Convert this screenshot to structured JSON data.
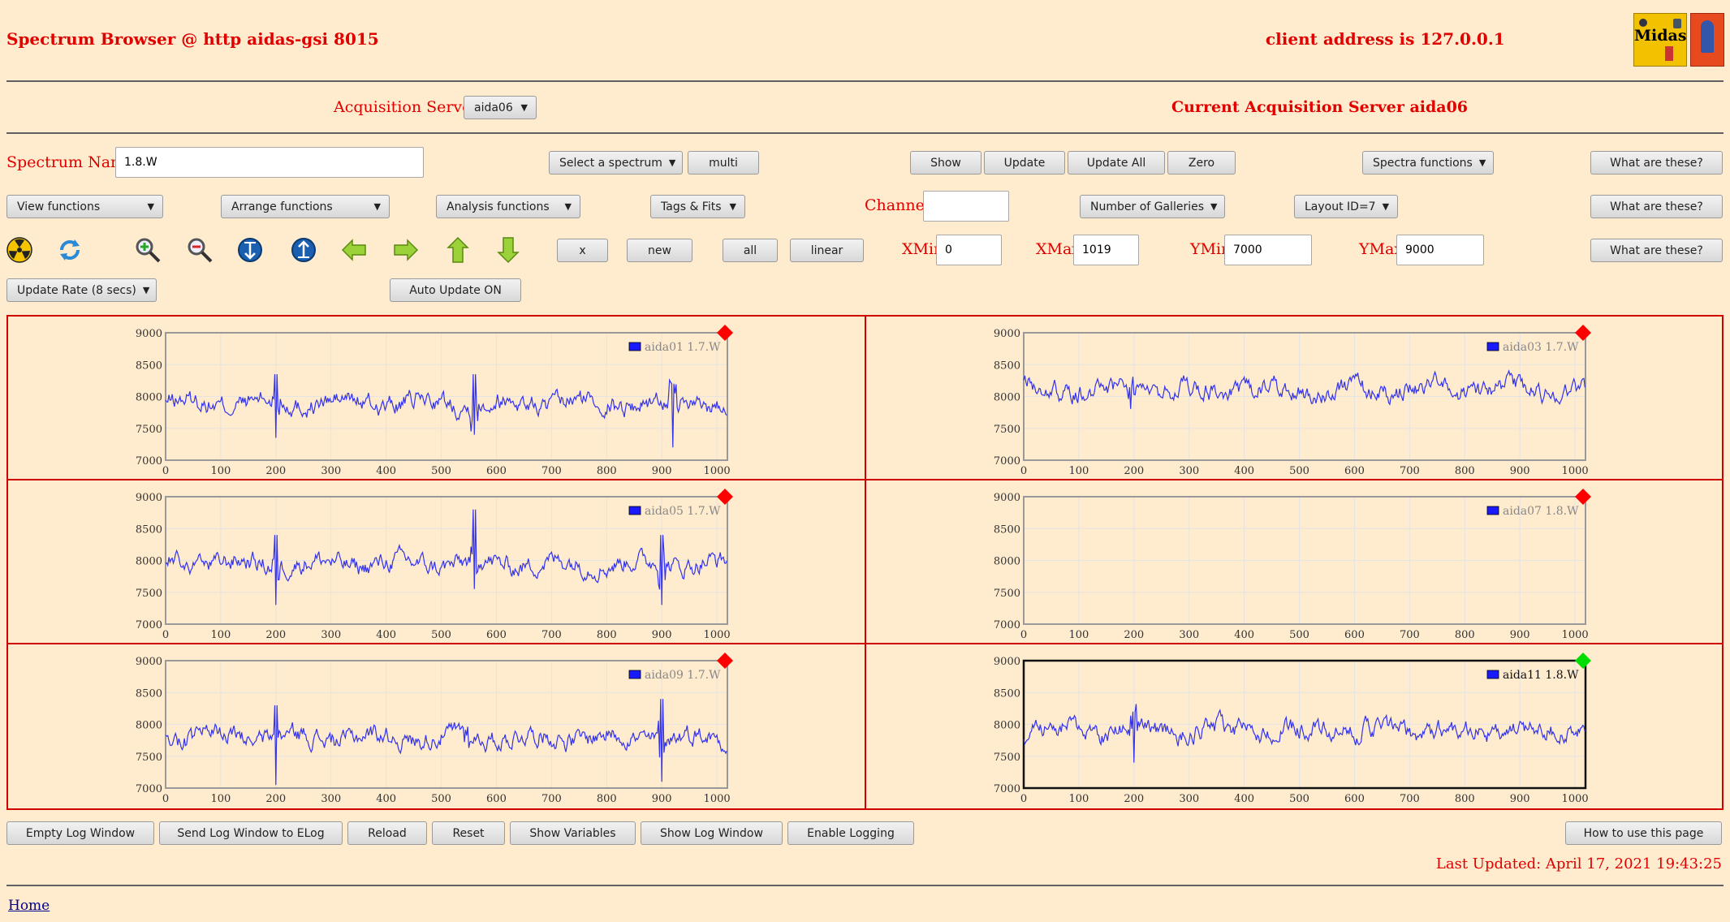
{
  "header": {
    "title": "Spectrum Browser @ http aidas-gsi 8015",
    "client_address": "client address is 127.0.0.1",
    "logo_text": "Midas"
  },
  "acq": {
    "label": "Acquisition Servers",
    "selected": "aida06",
    "current": "Current Acquisition Server aida06"
  },
  "row1": {
    "spectrum_name_label": "Spectrum Name:",
    "spectrum_name_value": "1.8.W",
    "select_spectrum": "Select a spectrum",
    "multi": "multi",
    "show": "Show",
    "update": "Update",
    "update_all": "Update All",
    "zero": "Zero",
    "spectra_functions": "Spectra functions",
    "what": "What are these?"
  },
  "row2": {
    "view_functions": "View functions",
    "arrange_functions": "Arrange functions",
    "analysis_functions": "Analysis functions",
    "tags_fits": "Tags & Fits",
    "channel_label": "Channel:",
    "channel_value": "",
    "galleries": "Number of Galleries",
    "layout": "Layout ID=7",
    "what": "What are these?"
  },
  "row3": {
    "x": "x",
    "new": "new",
    "all": "all",
    "linear": "linear",
    "xmin_label": "XMin",
    "xmin": "0",
    "xmax_label": "XMax",
    "xmax": "1019",
    "ymin_label": "YMin",
    "ymin": "7000",
    "ymax_label": "YMax",
    "ymax": "9000",
    "what": "What are these?",
    "icons": [
      "radiation-icon",
      "refresh-icon",
      "zoom-in-icon",
      "zoom-out-icon",
      "expand-y-icon",
      "compress-y-icon",
      "arrow-left-icon",
      "arrow-right-icon",
      "arrow-up-icon",
      "arrow-down-icon"
    ]
  },
  "row4": {
    "update_rate": "Update Rate (8 secs)",
    "auto_update": "Auto Update ON"
  },
  "chart_data": [
    {
      "type": "line",
      "series": [
        {
          "name": "aida01 1.7.W",
          "values": "noisy ~7900, spikes at 200, 560, 920"
        }
      ],
      "xlim": [
        0,
        1019
      ],
      "ylim": [
        7000,
        9000
      ],
      "xticks": [
        0,
        100,
        200,
        300,
        400,
        500,
        600,
        700,
        800,
        900,
        1000
      ],
      "yticks": [
        7000,
        7500,
        8000,
        8500,
        9000
      ],
      "status_color": "#ff0000"
    },
    {
      "type": "line",
      "series": [
        {
          "name": "aida03 1.7.W",
          "values": "noisy ~8100, spike at 195 (8650 / 7450)"
        }
      ],
      "xlim": [
        0,
        1019
      ],
      "ylim": [
        7000,
        9000
      ],
      "xticks": [
        0,
        100,
        200,
        300,
        400,
        500,
        600,
        700,
        800,
        900,
        1000
      ],
      "yticks": [
        7000,
        7500,
        8000,
        8500,
        9000
      ],
      "status_color": "#ff0000"
    },
    {
      "type": "line",
      "series": [
        {
          "name": "aida05 1.7.W",
          "values": "noisy ~7950, spike at 560 (8800)"
        }
      ],
      "xlim": [
        0,
        1019
      ],
      "ylim": [
        7000,
        9000
      ],
      "xticks": [
        0,
        100,
        200,
        300,
        400,
        500,
        600,
        700,
        800,
        900,
        1000
      ],
      "yticks": [
        7000,
        7500,
        8000,
        8500,
        9000
      ],
      "status_color": "#ff0000"
    },
    {
      "type": "line",
      "series": [
        {
          "name": "aida07 1.8.W",
          "values": []
        }
      ],
      "xlim": [
        0,
        1019
      ],
      "ylim": [
        7000,
        9000
      ],
      "xticks": [
        0,
        100,
        200,
        300,
        400,
        500,
        600,
        700,
        800,
        900,
        1000
      ],
      "yticks": [
        7000,
        7500,
        8000,
        8500,
        9000
      ],
      "status_color": "#ff0000"
    },
    {
      "type": "line",
      "series": [
        {
          "name": "aida09 1.7.W",
          "values": "noisy ~7800, spikes at 200, 545, 900"
        }
      ],
      "xlim": [
        0,
        1019
      ],
      "ylim": [
        7000,
        9000
      ],
      "xticks": [
        0,
        100,
        200,
        300,
        400,
        500,
        600,
        700,
        800,
        900,
        1000
      ],
      "yticks": [
        7000,
        7500,
        8000,
        8500,
        9000
      ],
      "status_color": "#ff0000"
    },
    {
      "type": "line",
      "series": [
        {
          "name": "aida11 1.8.W",
          "values": "noisy ~7900"
        }
      ],
      "xlim": [
        0,
        1019
      ],
      "ylim": [
        7000,
        9000
      ],
      "xticks": [
        0,
        100,
        200,
        300,
        400,
        500,
        600,
        700,
        800,
        900,
        1000
      ],
      "yticks": [
        7000,
        7500,
        8000,
        8500,
        9000
      ],
      "status_color": "#00dd00",
      "selected": true
    }
  ],
  "footer": {
    "empty_log": "Empty Log Window",
    "send_log": "Send Log Window to ELog",
    "reload": "Reload",
    "reset": "Reset",
    "show_variables": "Show Variables",
    "show_log": "Show Log Window",
    "enable_logging": "Enable Logging",
    "how_to": "How to use this page",
    "last_updated": "Last Updated: April 17, 2021 19:43:25",
    "home": "Home"
  }
}
